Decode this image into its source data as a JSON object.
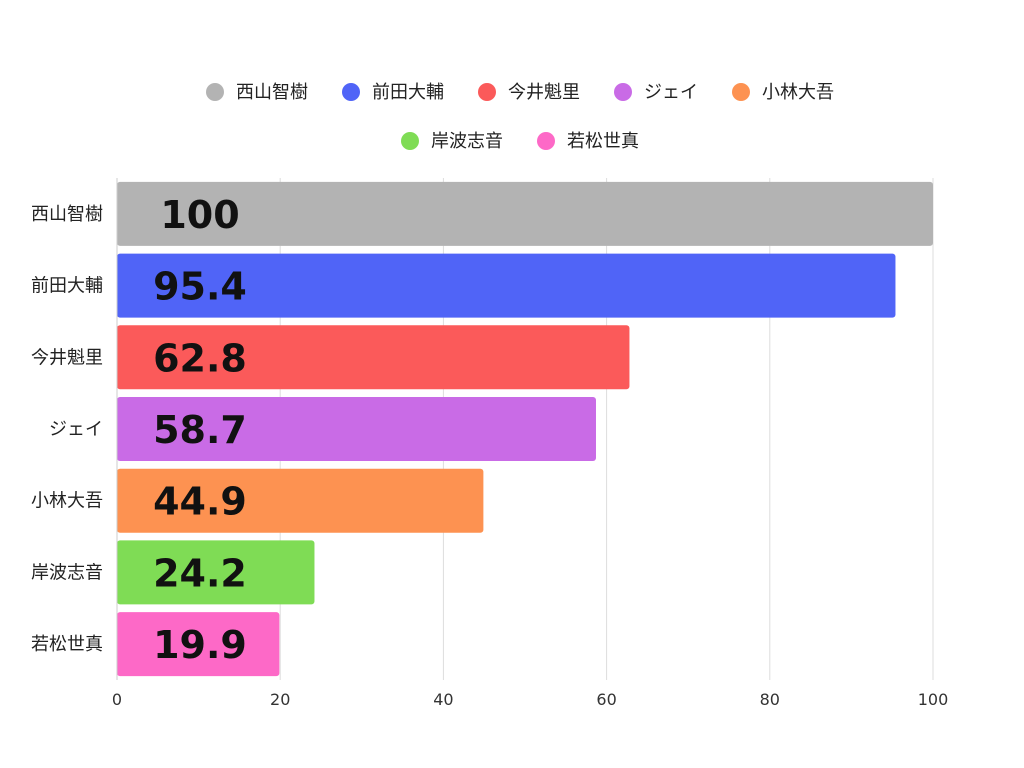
{
  "chart_data": {
    "type": "bar",
    "orientation": "horizontal",
    "categories": [
      "西山智樹",
      "前田大輔",
      "今井魁里",
      "ジェイ",
      "小林大吾",
      "岸波志音",
      "若松世真"
    ],
    "values": [
      100,
      95.4,
      62.8,
      58.7,
      44.9,
      24.2,
      19.9
    ],
    "data_labels": [
      "100",
      "95.4",
      "62.8",
      "58.7",
      "44.9",
      "24.2",
      "19.9"
    ],
    "colors": [
      "#b3b3b3",
      "#5064f7",
      "#fb5a5a",
      "#c96be6",
      "#fd9251",
      "#7fdc55",
      "#fd69c7"
    ],
    "legend": [
      "西山智樹",
      "前田大輔",
      "今井魁里",
      "ジェイ",
      "小林大吾",
      "岸波志音",
      "若松世真"
    ],
    "legend_position": "top",
    "xlim": [
      0,
      100
    ],
    "xticks": [
      0,
      20,
      40,
      60,
      80,
      100
    ],
    "xtick_labels": [
      "0",
      "20",
      "40",
      "60",
      "80",
      "100"
    ],
    "grid": true,
    "title": "",
    "xlabel": "",
    "ylabel": ""
  }
}
